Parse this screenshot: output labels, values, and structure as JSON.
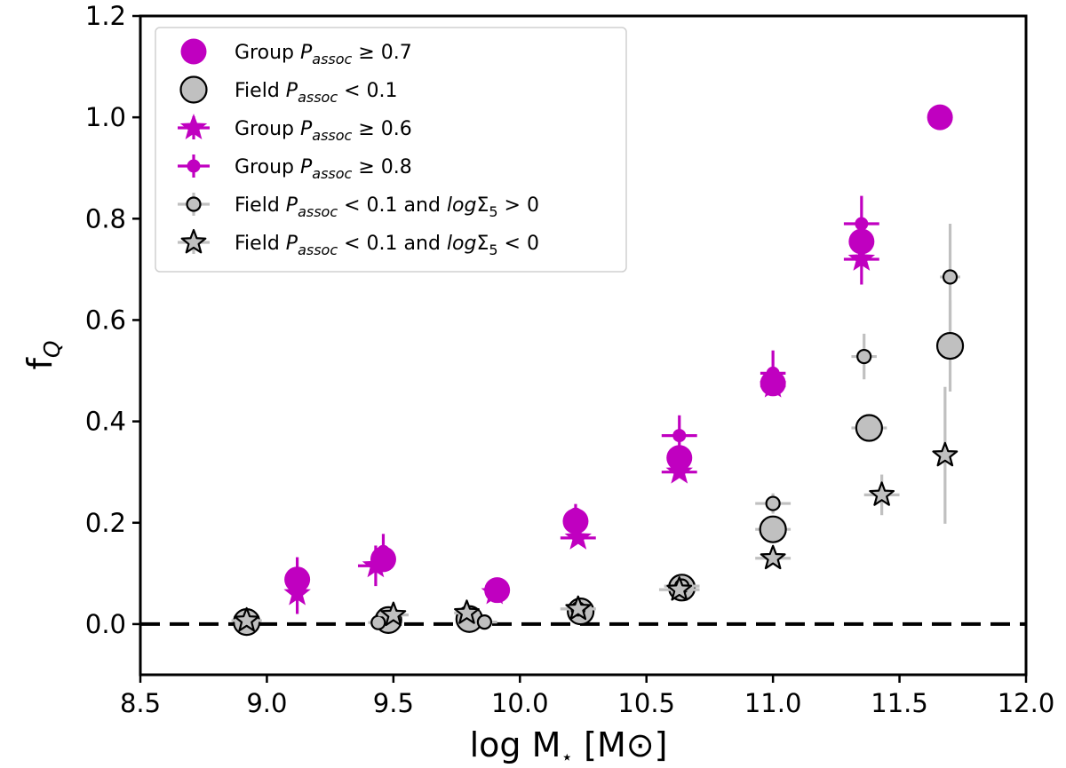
{
  "chart_data": {
    "type": "scatter",
    "title": "",
    "xlabel": "log M$_\\star$ [M$\\odot$]",
    "xlabel_main": "log M",
    "xlabel_sub": "⋆",
    "xlabel_unit": "[M⊙]",
    "ylabel": "f$_Q$",
    "ylabel_main": "f",
    "ylabel_sub": "Q",
    "xlim": [
      8.5,
      12.0
    ],
    "ylim": [
      -0.1,
      1.2
    ],
    "xticks": [
      "8.5",
      "9.0",
      "9.5",
      "10.0",
      "10.5",
      "11.0",
      "11.5",
      "12.0"
    ],
    "yticks": [
      "0.0",
      "0.2",
      "0.4",
      "0.6",
      "0.8",
      "1.0",
      "1.2"
    ],
    "grid": false,
    "legend_placement": "top-left",
    "reference_line": {
      "y": 0.0,
      "style": "dashed",
      "color": "#000000"
    },
    "series": [
      {
        "name": "Group $P_{assoc} \\geq$ 0.7",
        "legend_parts": [
          "Group ",
          "P",
          "assoc",
          " ≥  0.7",
          "",
          ""
        ],
        "marker": "circle-large",
        "color": "#c000c0",
        "edge": "none",
        "points": [
          {
            "x": 9.12,
            "y": 0.088,
            "xerr": 0,
            "yerr": 0
          },
          {
            "x": 9.46,
            "y": 0.128,
            "xerr": 0,
            "yerr": 0
          },
          {
            "x": 9.91,
            "y": 0.067,
            "xerr": 0,
            "yerr": 0
          },
          {
            "x": 10.22,
            "y": 0.203,
            "xerr": 0,
            "yerr": 0
          },
          {
            "x": 10.63,
            "y": 0.328,
            "xerr": 0,
            "yerr": 0
          },
          {
            "x": 11.0,
            "y": 0.475,
            "xerr": 0,
            "yerr": 0
          },
          {
            "x": 11.35,
            "y": 0.755,
            "xerr": 0,
            "yerr": 0
          },
          {
            "x": 11.66,
            "y": 1.0,
            "xerr": 0,
            "yerr": 0
          }
        ]
      },
      {
        "name": "Field $P_{assoc} <$ 0.1",
        "legend_parts": [
          "Field ",
          "P",
          "assoc",
          " <  0.1",
          "",
          ""
        ],
        "marker": "circle-large",
        "color": "#c0c0c0",
        "edge": "#000000",
        "points": [
          {
            "x": 8.92,
            "y": 0.004,
            "xerr": 0,
            "yerr": 0
          },
          {
            "x": 9.48,
            "y": 0.008,
            "xerr": 0,
            "yerr": 0
          },
          {
            "x": 9.8,
            "y": 0.01,
            "xerr": 0,
            "yerr": 0
          },
          {
            "x": 10.24,
            "y": 0.025,
            "xerr": 0,
            "yerr": 0
          },
          {
            "x": 10.64,
            "y": 0.072,
            "xerr": 0,
            "yerr": 0
          },
          {
            "x": 11.0,
            "y": 0.187,
            "xerr": 0.07,
            "yerr": 0
          },
          {
            "x": 11.38,
            "y": 0.387,
            "xerr": 0.07,
            "yerr": 0
          },
          {
            "x": 11.7,
            "y": 0.549,
            "xerr": 0.04,
            "yerr": 0.09
          }
        ]
      },
      {
        "name": "Group $P_{assoc} \\geq$ 0.6",
        "legend_parts": [
          "Group ",
          "P",
          "assoc",
          " ≥  0.6",
          "",
          ""
        ],
        "marker": "star",
        "color": "#c000c0",
        "edge": "none",
        "points": [
          {
            "x": 9.12,
            "y": 0.06,
            "xerr": 0,
            "yerr": 0.04
          },
          {
            "x": 9.43,
            "y": 0.115,
            "xerr": 0.07,
            "yerr": 0.04
          },
          {
            "x": 9.9,
            "y": 0.062,
            "xerr": 0,
            "yerr": 0
          },
          {
            "x": 10.23,
            "y": 0.17,
            "xerr": 0.07,
            "yerr": 0
          },
          {
            "x": 10.63,
            "y": 0.3,
            "xerr": 0.07,
            "yerr": 0
          },
          {
            "x": 11.0,
            "y": 0.47,
            "xerr": 0.05,
            "yerr": 0
          },
          {
            "x": 11.35,
            "y": 0.72,
            "xerr": 0.07,
            "yerr": 0.05
          }
        ]
      },
      {
        "name": "Group $P_{assoc} \\geq$ 0.8",
        "legend_parts": [
          "Group ",
          "P",
          "assoc",
          " ≥  0.8",
          "",
          ""
        ],
        "marker": "circle-small",
        "color": "#c000c0",
        "edge": "none",
        "points": [
          {
            "x": 9.12,
            "y": 0.097,
            "xerr": 0,
            "yerr": 0.035
          },
          {
            "x": 9.46,
            "y": 0.143,
            "xerr": 0,
            "yerr": 0.035
          },
          {
            "x": 9.9,
            "y": 0.075,
            "xerr": 0,
            "yerr": 0
          },
          {
            "x": 10.22,
            "y": 0.217,
            "xerr": 0,
            "yerr": 0.02
          },
          {
            "x": 10.63,
            "y": 0.372,
            "xerr": 0.07,
            "yerr": 0.04
          },
          {
            "x": 11.0,
            "y": 0.495,
            "xerr": 0.05,
            "yerr": 0.045
          },
          {
            "x": 11.35,
            "y": 0.79,
            "xerr": 0.07,
            "yerr": 0.055
          }
        ]
      },
      {
        "name": "Field $P_{assoc} <$ 0.1 and $log\\Sigma_5 > 0$",
        "legend_parts": [
          "Field ",
          "P",
          "assoc",
          " <  0.1 and ",
          "log",
          "Σ",
          "5",
          " > 0"
        ],
        "marker": "circle-small",
        "color": "#c0c0c0",
        "edge": "#000000",
        "points": [
          {
            "x": 9.44,
            "y": 0.003,
            "xerr": 0.04,
            "yerr": 0
          },
          {
            "x": 9.86,
            "y": 0.004,
            "xerr": 0.05,
            "yerr": 0
          },
          {
            "x": 10.23,
            "y": 0.03,
            "xerr": 0.07,
            "yerr": 0
          },
          {
            "x": 10.64,
            "y": 0.075,
            "xerr": 0.07,
            "yerr": 0
          },
          {
            "x": 11.0,
            "y": 0.238,
            "xerr": 0.07,
            "yerr": 0.02
          },
          {
            "x": 11.36,
            "y": 0.528,
            "xerr": 0.05,
            "yerr": 0.045
          },
          {
            "x": 11.7,
            "y": 0.685,
            "xerr": 0.04,
            "yerr": 0.105
          }
        ]
      },
      {
        "name": "Field $P_{assoc} <$ 0.1 and $log\\Sigma_5 < 0$",
        "legend_parts": [
          "Field ",
          "P",
          "assoc",
          " <  0.1 and ",
          "log",
          "Σ",
          "5",
          " < 0"
        ],
        "marker": "star",
        "color": "#c0c0c0",
        "edge": "#000000",
        "points": [
          {
            "x": 8.92,
            "y": 0.007,
            "xerr": 0.06,
            "yerr": 0
          },
          {
            "x": 9.5,
            "y": 0.018,
            "xerr": 0.06,
            "yerr": 0
          },
          {
            "x": 9.79,
            "y": 0.022,
            "xerr": 0.05,
            "yerr": 0
          },
          {
            "x": 10.23,
            "y": 0.03,
            "xerr": 0.07,
            "yerr": 0
          },
          {
            "x": 10.63,
            "y": 0.068,
            "xerr": 0.08,
            "yerr": 0
          },
          {
            "x": 11.0,
            "y": 0.13,
            "xerr": 0.07,
            "yerr": 0
          },
          {
            "x": 11.43,
            "y": 0.255,
            "xerr": 0.07,
            "yerr": 0.04
          },
          {
            "x": 11.68,
            "y": 0.333,
            "xerr": 0,
            "yerr": 0.135
          }
        ]
      }
    ]
  }
}
